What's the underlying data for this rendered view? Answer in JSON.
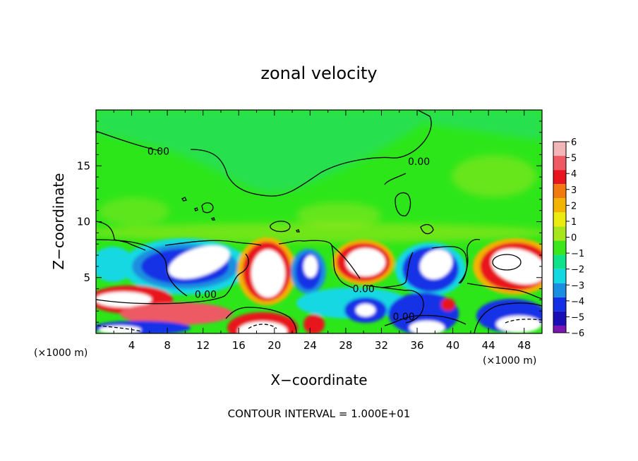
{
  "chart_data": {
    "type": "heatmap",
    "title": "zonal velocity",
    "xlabel": "X−coordinate",
    "ylabel": "Z−coordinate",
    "x_units_left": "(×1000 m)",
    "x_units_right": "(×1000 m)",
    "footer": "CONTOUR INTERVAL = 1.000E+01",
    "xlim": [
      0,
      50
    ],
    "ylim": [
      0,
      20
    ],
    "x_ticks": [
      4,
      8,
      12,
      16,
      20,
      24,
      28,
      32,
      36,
      40,
      44,
      48
    ],
    "x_tick_labels": [
      "4",
      "8",
      "12",
      "16",
      "20",
      "24",
      "28",
      "32",
      "36",
      "40",
      "44",
      "48"
    ],
    "y_ticks": [
      5,
      10,
      15
    ],
    "y_tick_labels": [
      "5",
      "10",
      "15"
    ],
    "colorbar": {
      "min": -6,
      "max": 6,
      "tick_labels": [
        "6",
        "5",
        "4",
        "3",
        "2",
        "1",
        "0",
        "−1",
        "−2",
        "−3",
        "−4",
        "−5",
        "−6"
      ],
      "colors": [
        "#f2b6b6",
        "#ee5a64",
        "#e8151e",
        "#f07a10",
        "#f3b400",
        "#ebeb10",
        "#a6e61a",
        "#3be61a",
        "#10e28a",
        "#12d8e2",
        "#1a8ee0",
        "#1430e6",
        "#1a0fb4",
        "#7a16b4"
      ]
    },
    "contour_labels": [
      {
        "text": "0.00",
        "x": 7,
        "z": 16.3
      },
      {
        "text": "0.00",
        "x": 36.2,
        "z": 15.4
      },
      {
        "text": "0.00",
        "x": 12.3,
        "z": 3.5
      },
      {
        "text": "0.00",
        "x": 30,
        "z": 4
      },
      {
        "text": "0.00",
        "x": 34.5,
        "z": 1.5
      }
    ],
    "features": [
      {
        "kind": "strong-negative",
        "x": 10,
        "z": 5.5,
        "rx": 5.5,
        "rz": 2.5
      },
      {
        "kind": "strong-positive",
        "x": 20,
        "z": 5.5,
        "rx": 3.5,
        "rz": 3
      },
      {
        "kind": "strong-negative",
        "x": 25,
        "z": 5.5,
        "rx": 2.2,
        "rz": 2.4
      },
      {
        "kind": "strong-positive",
        "x": 30,
        "z": 6,
        "rx": 3.5,
        "rz": 2.2
      },
      {
        "kind": "strong-negative",
        "x": 37.5,
        "z": 5.5,
        "rx": 4,
        "rz": 2.4
      },
      {
        "kind": "strong-positive",
        "x": 47,
        "z": 6,
        "rx": 4,
        "rz": 2.5
      },
      {
        "kind": "strong-positive",
        "x": 3,
        "z": 3,
        "rx": 4,
        "rz": 1.2
      },
      {
        "kind": "strong-negative",
        "x": 30.5,
        "z": 2,
        "rx": 2.8,
        "rz": 1.4
      },
      {
        "kind": "strong-positive",
        "x": 19,
        "z": 0.6,
        "rx": 3.2,
        "rz": 1
      },
      {
        "kind": "strong-negative",
        "x": 47,
        "z": 1.5,
        "rx": 3.2,
        "rz": 1.2
      }
    ]
  }
}
